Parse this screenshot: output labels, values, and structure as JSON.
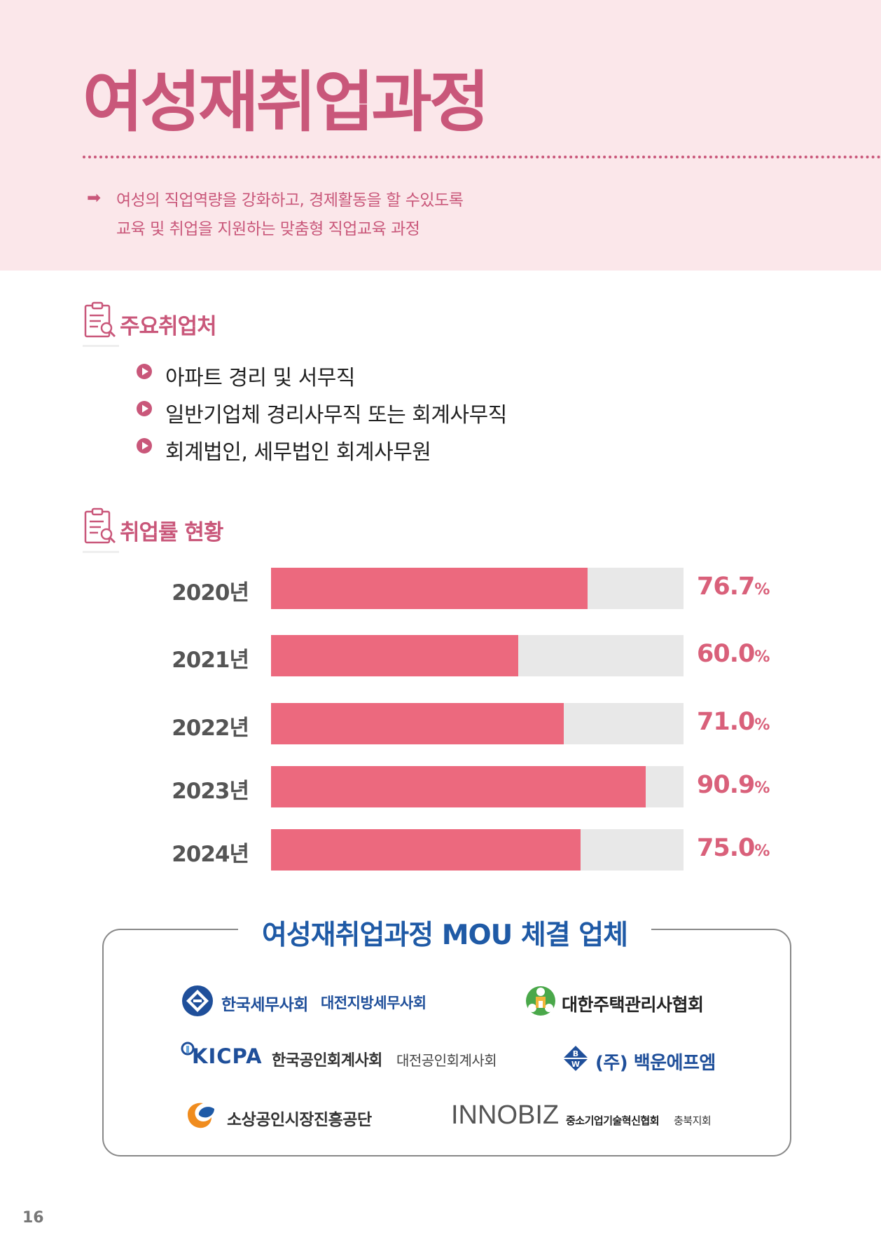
{
  "header": {
    "title": "여성재취업과정",
    "intro_lines": [
      "여성의 직업역량을 강화하고, 경제활동을 할 수있도록",
      "교육 및 취업을 지원하는 맞춤형 직업교육 과정"
    ]
  },
  "employers_section": {
    "title": "주요취업처",
    "items": [
      "아파트 경리 및 서무직",
      "일반기업체 경리사무직 또는 회계사무직",
      "회계법인, 세무법인 회계사무원"
    ]
  },
  "rate_section": {
    "title": "취업률 현황"
  },
  "chart_data": {
    "type": "bar",
    "orientation": "horizontal",
    "categories": [
      "2020년",
      "2021년",
      "2022년",
      "2023년",
      "2024년"
    ],
    "values": [
      76.7,
      60.0,
      71.0,
      90.9,
      75.0
    ],
    "value_labels": [
      "76.7",
      "60.0",
      "71.0",
      "90.9",
      "75.0"
    ],
    "unit": "%",
    "xlim": [
      0,
      100
    ],
    "colors": {
      "fill": "#ec697e",
      "track": "#e8e8e8",
      "label": "#d9607a"
    }
  },
  "mou": {
    "title": "여성재취업과정 MOU 체결 업체",
    "partners": [
      {
        "name": "한국세무사회",
        "sub": "대전지방세무사회",
        "logo_icon": "tax-accountant-emblem-icon"
      },
      {
        "name": "대한주택관리사협회",
        "sub": "",
        "logo_icon": "housing-manager-emblem-icon"
      },
      {
        "logo_text": "KICPA",
        "name": "한국공인회계사회",
        "sub": "대전공인회계사회",
        "logo_icon": "kicpa-logo-icon"
      },
      {
        "name": "(주) 백운에프엠",
        "sub": "",
        "logo_text": "B W",
        "logo_icon": "baekwoon-diamond-icon"
      },
      {
        "name": "소상공인시장진흥공단",
        "sub": "",
        "logo_icon": "semas-swirl-icon"
      },
      {
        "logo_text": "INNOBIZ",
        "name": "중소기업기술혁신협회",
        "sub": "충북지회",
        "logo_icon": "innobiz-logo-icon"
      }
    ]
  },
  "footer": {
    "page_number": "16"
  },
  "colors": {
    "accent_pink": "#c9577a",
    "band": "#fbe7ea",
    "mou_blue": "#1f5aa6"
  }
}
